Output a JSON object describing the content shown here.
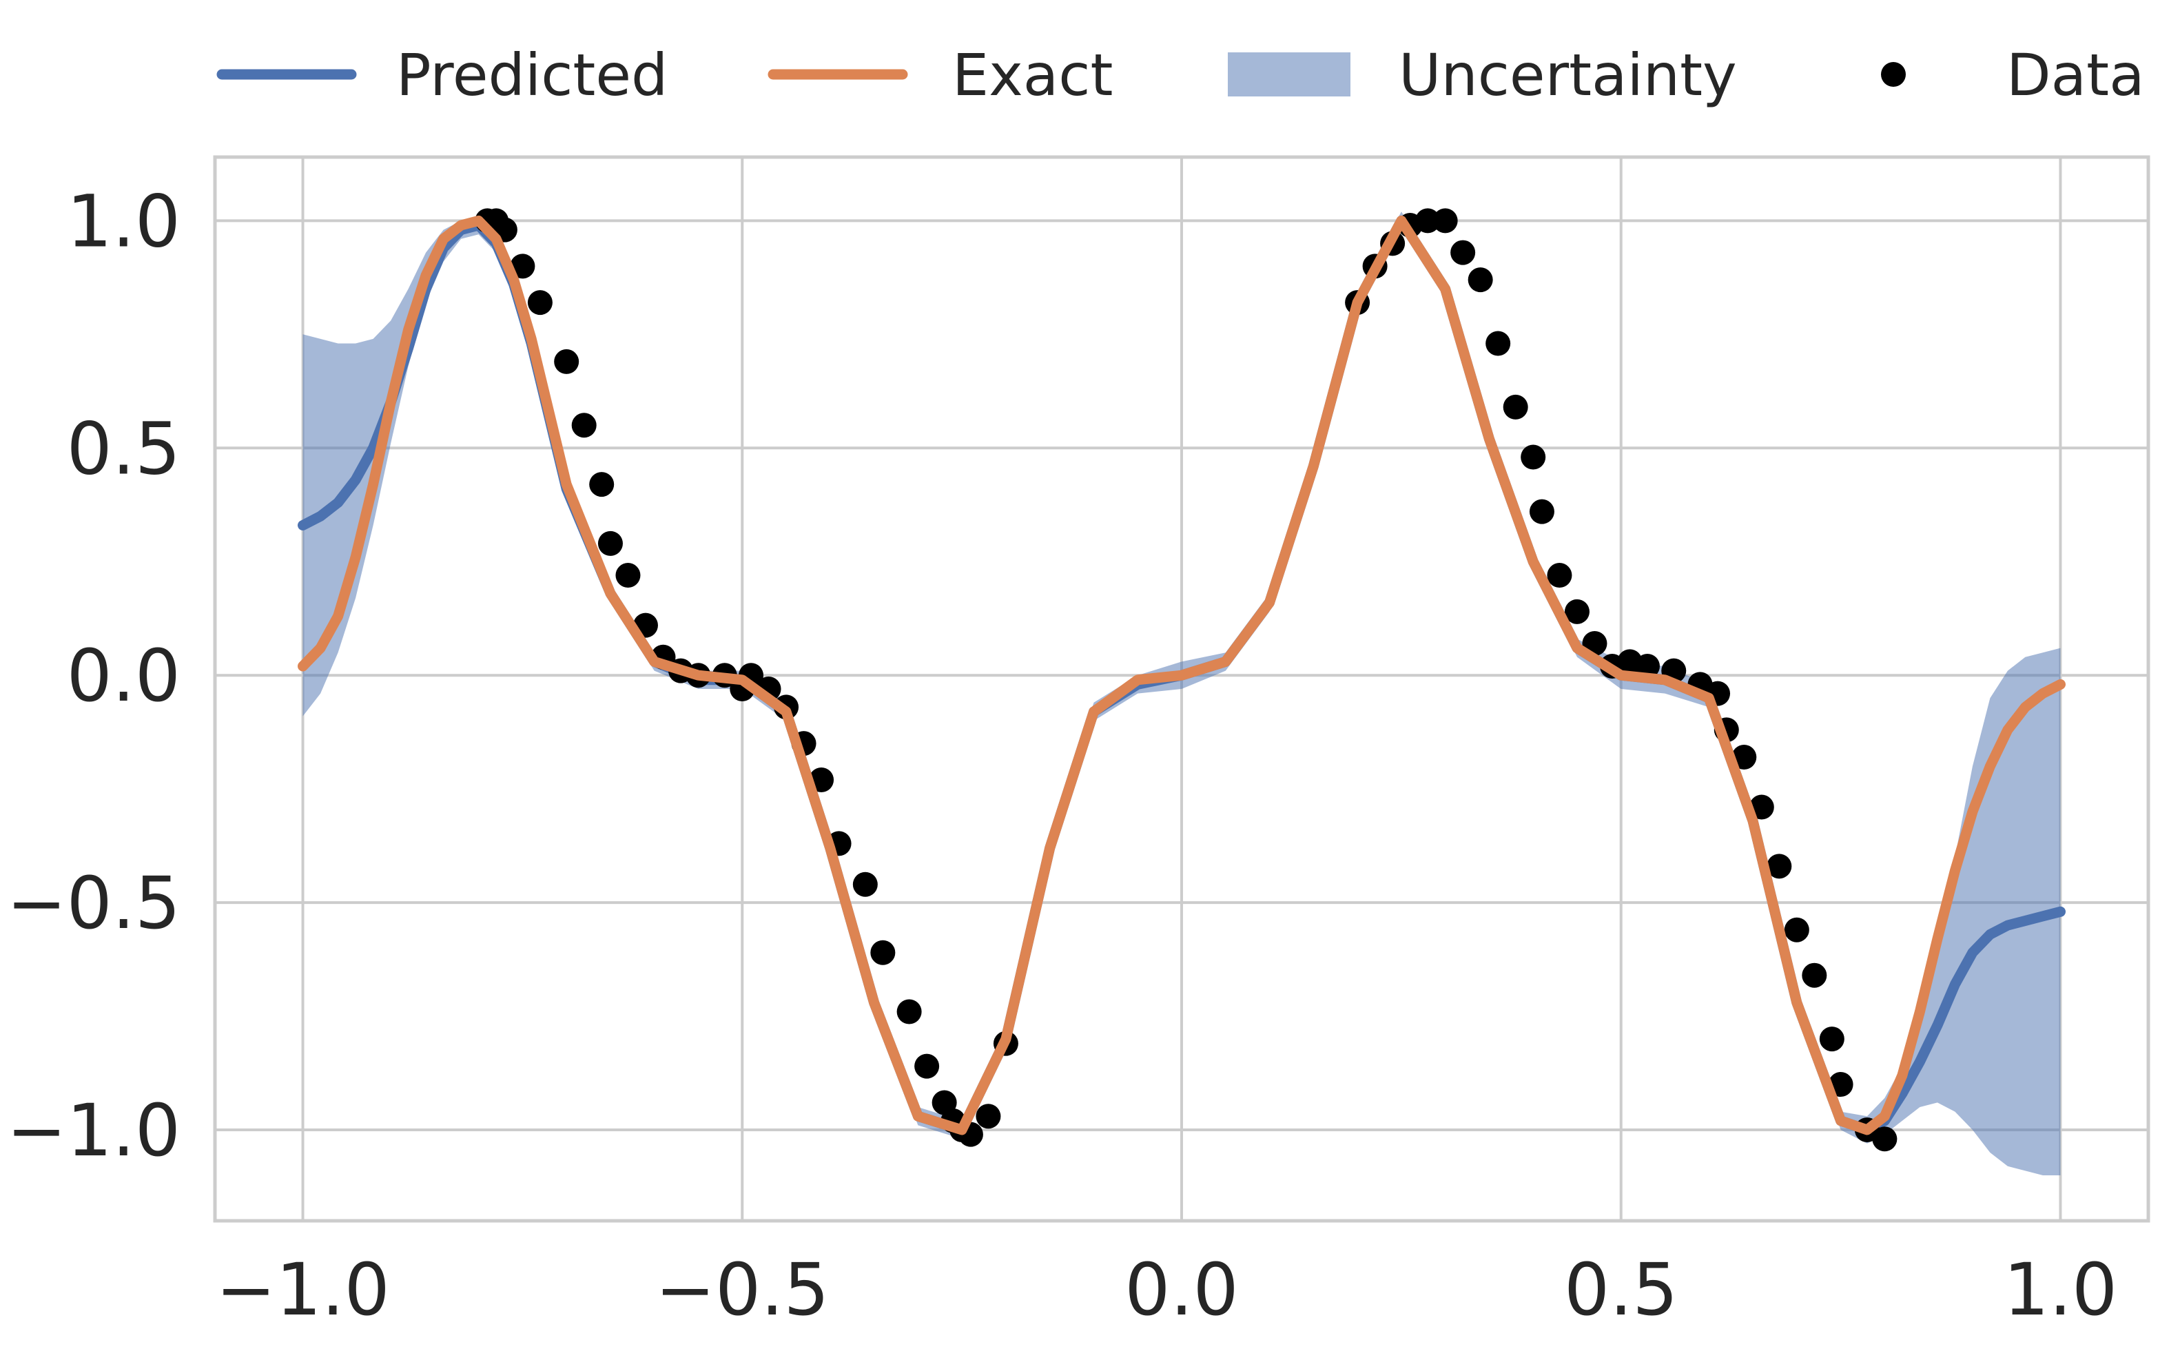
{
  "chart_data": {
    "type": "line",
    "title": "",
    "xlabel": "",
    "ylabel": "",
    "xlim": [
      -1.1,
      1.1
    ],
    "ylim": [
      -1.2,
      1.14
    ],
    "xticks": [
      -1.0,
      -0.5,
      0.0,
      0.5,
      1.0
    ],
    "xtick_labels": [
      "−1.0",
      "−0.5",
      "0.0",
      "0.5",
      "1.0"
    ],
    "yticks": [
      -1.0,
      -0.5,
      0.0,
      0.5,
      1.0
    ],
    "ytick_labels": [
      "−1.0",
      "−0.5",
      "0.0",
      "0.5",
      "1.0"
    ],
    "grid": true,
    "legend": {
      "placement": "top",
      "entries": [
        {
          "label": "Predicted",
          "kind": "line",
          "color": "#4c72b0"
        },
        {
          "label": "Exact",
          "kind": "line",
          "color": "#dd8452"
        },
        {
          "label": "Uncertainty",
          "kind": "band",
          "color": "#4c72b0"
        },
        {
          "label": "Data",
          "kind": "marker",
          "color": "#000000"
        }
      ]
    },
    "series": [
      {
        "name": "Predicted",
        "color": "#4c72b0",
        "x": [
          -1.0,
          -0.98,
          -0.96,
          -0.94,
          -0.92,
          -0.9,
          -0.88,
          -0.86,
          -0.84,
          -0.82,
          -0.8,
          -0.78,
          -0.76,
          -0.74,
          -0.72,
          -0.7,
          -0.65,
          -0.6,
          -0.55,
          -0.5,
          -0.45,
          -0.4,
          -0.35,
          -0.3,
          -0.25,
          -0.2,
          -0.15,
          -0.1,
          -0.05,
          0.0,
          0.05,
          0.1,
          0.15,
          0.2,
          0.25,
          0.3,
          0.35,
          0.4,
          0.45,
          0.5,
          0.55,
          0.6,
          0.65,
          0.7,
          0.75,
          0.78,
          0.8,
          0.82,
          0.84,
          0.86,
          0.88,
          0.9,
          0.92,
          0.94,
          0.96,
          0.98,
          1.0
        ],
        "y": [
          0.33,
          0.35,
          0.38,
          0.43,
          0.5,
          0.6,
          0.72,
          0.85,
          0.94,
          0.98,
          0.99,
          0.95,
          0.86,
          0.73,
          0.57,
          0.41,
          0.18,
          0.03,
          -0.01,
          -0.01,
          -0.08,
          -0.38,
          -0.72,
          -0.97,
          -1.0,
          -0.8,
          -0.38,
          -0.08,
          -0.02,
          0.0,
          0.03,
          0.16,
          0.46,
          0.82,
          1.0,
          0.85,
          0.52,
          0.25,
          0.06,
          0.0,
          -0.01,
          -0.05,
          -0.32,
          -0.72,
          -0.98,
          -1.0,
          -0.98,
          -0.92,
          -0.85,
          -0.77,
          -0.68,
          -0.61,
          -0.57,
          -0.55,
          -0.54,
          -0.53,
          -0.52
        ]
      },
      {
        "name": "Exact",
        "color": "#dd8452",
        "x": [
          -1.0,
          -0.98,
          -0.96,
          -0.94,
          -0.92,
          -0.9,
          -0.88,
          -0.86,
          -0.84,
          -0.82,
          -0.8,
          -0.78,
          -0.76,
          -0.74,
          -0.72,
          -0.7,
          -0.65,
          -0.6,
          -0.55,
          -0.5,
          -0.45,
          -0.4,
          -0.35,
          -0.3,
          -0.25,
          -0.2,
          -0.15,
          -0.1,
          -0.05,
          0.0,
          0.05,
          0.1,
          0.15,
          0.2,
          0.25,
          0.3,
          0.35,
          0.4,
          0.45,
          0.5,
          0.55,
          0.6,
          0.65,
          0.7,
          0.75,
          0.78,
          0.8,
          0.82,
          0.84,
          0.86,
          0.88,
          0.9,
          0.92,
          0.94,
          0.96,
          0.98,
          1.0
        ],
        "y": [
          0.02,
          0.06,
          0.13,
          0.26,
          0.42,
          0.6,
          0.76,
          0.88,
          0.96,
          0.99,
          1.0,
          0.96,
          0.87,
          0.74,
          0.58,
          0.42,
          0.18,
          0.03,
          0.0,
          -0.01,
          -0.08,
          -0.38,
          -0.72,
          -0.97,
          -1.0,
          -0.8,
          -0.38,
          -0.08,
          -0.01,
          0.0,
          0.03,
          0.16,
          0.46,
          0.82,
          1.0,
          0.85,
          0.52,
          0.25,
          0.06,
          0.0,
          -0.01,
          -0.05,
          -0.32,
          -0.72,
          -0.98,
          -1.0,
          -0.97,
          -0.88,
          -0.74,
          -0.58,
          -0.43,
          -0.3,
          -0.2,
          -0.12,
          -0.07,
          -0.04,
          -0.02
        ]
      }
    ],
    "uncertainty": {
      "name": "Uncertainty",
      "color": "#4c72b0",
      "opacity": 0.5,
      "x": [
        -1.0,
        -0.98,
        -0.96,
        -0.94,
        -0.92,
        -0.9,
        -0.88,
        -0.86,
        -0.84,
        -0.82,
        -0.8,
        -0.78,
        -0.76,
        -0.74,
        -0.72,
        -0.7,
        -0.65,
        -0.6,
        -0.55,
        -0.5,
        -0.45,
        -0.4,
        -0.35,
        -0.3,
        -0.25,
        -0.2,
        -0.15,
        -0.1,
        -0.05,
        0.0,
        0.05,
        0.1,
        0.15,
        0.2,
        0.25,
        0.3,
        0.35,
        0.4,
        0.45,
        0.5,
        0.55,
        0.6,
        0.65,
        0.7,
        0.75,
        0.78,
        0.8,
        0.82,
        0.84,
        0.86,
        0.88,
        0.9,
        0.92,
        0.94,
        0.96,
        0.98,
        1.0
      ],
      "lower": [
        -0.09,
        -0.04,
        0.05,
        0.17,
        0.33,
        0.51,
        0.68,
        0.82,
        0.91,
        0.96,
        0.97,
        0.93,
        0.84,
        0.71,
        0.55,
        0.39,
        0.16,
        0.01,
        -0.03,
        -0.03,
        -0.1,
        -0.4,
        -0.74,
        -0.99,
        -1.02,
        -0.82,
        -0.4,
        -0.1,
        -0.04,
        -0.03,
        0.01,
        0.14,
        0.44,
        0.8,
        0.98,
        0.83,
        0.5,
        0.23,
        0.04,
        -0.03,
        -0.04,
        -0.07,
        -0.34,
        -0.74,
        -1.0,
        -1.03,
        -1.01,
        -0.98,
        -0.95,
        -0.94,
        -0.96,
        -1.0,
        -1.05,
        -1.08,
        -1.09,
        -1.1,
        -1.1
      ],
      "upper": [
        0.75,
        0.74,
        0.73,
        0.73,
        0.74,
        0.78,
        0.85,
        0.93,
        0.98,
        1.0,
        1.01,
        0.98,
        0.89,
        0.76,
        0.6,
        0.44,
        0.2,
        0.05,
        0.01,
        0.01,
        -0.06,
        -0.36,
        -0.7,
        -0.95,
        -0.98,
        -0.78,
        -0.36,
        -0.06,
        0.0,
        0.03,
        0.05,
        0.18,
        0.48,
        0.84,
        1.02,
        0.87,
        0.54,
        0.27,
        0.08,
        0.03,
        0.02,
        -0.02,
        -0.3,
        -0.7,
        -0.96,
        -0.97,
        -0.93,
        -0.86,
        -0.76,
        -0.6,
        -0.4,
        -0.2,
        -0.05,
        0.01,
        0.04,
        0.05,
        0.06
      ]
    },
    "data_points": {
      "name": "Data",
      "color": "#000000",
      "x": [
        -0.79,
        -0.78,
        -0.77,
        -0.75,
        -0.73,
        -0.7,
        -0.68,
        -0.66,
        -0.65,
        -0.63,
        -0.61,
        -0.59,
        -0.57,
        -0.55,
        -0.52,
        -0.5,
        -0.49,
        -0.47,
        -0.45,
        -0.43,
        -0.41,
        -0.39,
        -0.36,
        -0.34,
        -0.31,
        -0.29,
        -0.27,
        -0.26,
        -0.25,
        -0.24,
        -0.22,
        -0.2,
        0.2,
        0.22,
        0.24,
        0.26,
        0.28,
        0.3,
        0.32,
        0.34,
        0.36,
        0.38,
        0.4,
        0.41,
        0.43,
        0.45,
        0.47,
        0.49,
        0.51,
        0.53,
        0.56,
        0.59,
        0.61,
        0.62,
        0.64,
        0.66,
        0.68,
        0.7,
        0.72,
        0.74,
        0.75,
        0.78,
        0.8
      ],
      "y": [
        1.0,
        1.0,
        0.98,
        0.9,
        0.82,
        0.69,
        0.55,
        0.42,
        0.29,
        0.22,
        0.11,
        0.04,
        0.01,
        0.0,
        0.0,
        -0.03,
        0.0,
        -0.03,
        -0.07,
        -0.15,
        -0.23,
        -0.37,
        -0.46,
        -0.61,
        -0.74,
        -0.86,
        -0.94,
        -0.98,
        -1.0,
        -1.01,
        -0.97,
        -0.81,
        0.82,
        0.9,
        0.95,
        0.99,
        1.0,
        1.0,
        0.93,
        0.87,
        0.73,
        0.59,
        0.48,
        0.36,
        0.22,
        0.14,
        0.07,
        0.02,
        0.03,
        0.02,
        0.01,
        -0.02,
        -0.04,
        -0.12,
        -0.18,
        -0.29,
        -0.42,
        -0.56,
        -0.66,
        -0.8,
        -0.9,
        -1.0,
        -1.02
      ]
    }
  }
}
